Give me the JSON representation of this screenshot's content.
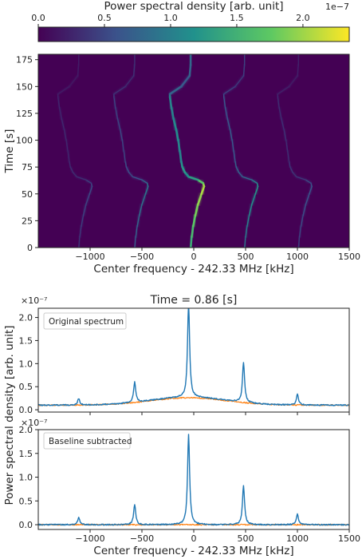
{
  "colorbar": {
    "label": "Power spectral density [arb. unit]",
    "exponent": "1e−7",
    "ticks": [
      "0.0",
      "0.5",
      "1.0",
      "1.5",
      "2.0"
    ],
    "tick_values": [
      0.0,
      0.5,
      1.0,
      1.5,
      2.0
    ],
    "range": [
      0,
      2.35
    ],
    "colormap": [
      "#440154",
      "#3b528b",
      "#21918c",
      "#5ec962",
      "#fde725"
    ]
  },
  "chart_data": [
    {
      "type": "heatmap",
      "title": "",
      "xlabel": "Center frequency - 242.33 MHz [kHz]",
      "ylabel": "Time [s]",
      "xlim": [
        -1500,
        1500
      ],
      "ylim": [
        0,
        180
      ],
      "xticks": [
        -1000,
        -500,
        0,
        500,
        1000,
        1500
      ],
      "xtick_labels": [
        "−1000",
        "−500",
        "0",
        "500",
        "1000",
        "1500"
      ],
      "yticks": [
        0,
        25,
        50,
        75,
        100,
        125,
        150,
        175
      ],
      "ytick_labels": [
        "0",
        "25",
        "50",
        "75",
        "100",
        "125",
        "150",
        "175"
      ],
      "background_color": "#440154",
      "main_track": {
        "time": [
          0,
          10,
          20,
          30,
          40,
          50,
          57,
          60,
          63,
          66,
          70,
          75,
          80,
          90,
          100,
          110,
          120,
          130,
          140,
          143,
          150,
          160,
          170,
          180
        ],
        "freq": [
          -30,
          -20,
          -5,
          15,
          40,
          75,
          100,
          90,
          40,
          -50,
          -85,
          -110,
          -120,
          -135,
          -150,
          -170,
          -195,
          -215,
          -230,
          -230,
          -120,
          -40,
          -30,
          -30
        ],
        "intensity": [
          1.4,
          1.5,
          1.65,
          1.8,
          1.9,
          2.0,
          2.1,
          1.9,
          1.5,
          1.1,
          1.2,
          1.3,
          1.1,
          1.0,
          1.1,
          1.15,
          1.05,
          1.0,
          1.1,
          0.9,
          0.6,
          0.7,
          0.8,
          0.8
        ]
      },
      "sideband_offsets_khz": [
        -1080,
        -540,
        520,
        1040
      ],
      "sideband_intensity": [
        0.25,
        0.45,
        0.6,
        0.3
      ]
    },
    {
      "type": "line",
      "title": "Time = 0.86 [s]",
      "legend": "Original spectrum",
      "xlim": [
        -1500,
        1500
      ],
      "ylim": [
        -0.05,
        2.2
      ],
      "yticks": [
        0.0,
        0.5,
        1.0,
        1.5,
        2.0
      ],
      "ytick_labels": [
        "0.0",
        "0.5",
        "1.0",
        "1.5",
        "2.0"
      ],
      "y_exponent": "×10⁻⁷",
      "series": [
        {
          "color": "#1f77b4",
          "baseline": 0.1,
          "hump": {
            "center": -50,
            "amplitude": 0.17,
            "width": 520
          },
          "peaks": [
            {
              "x": -1110,
              "y": 0.24
            },
            {
              "x": -570,
              "y": 0.54
            },
            {
              "x": -50,
              "y": 2.14
            },
            {
              "x": 480,
              "y": 0.97
            },
            {
              "x": 1000,
              "y": 0.34
            }
          ]
        },
        {
          "color": "#ff7f0e",
          "baseline": 0.1,
          "hump": {
            "center": -50,
            "amplitude": 0.16,
            "width": 520
          }
        }
      ]
    },
    {
      "type": "line",
      "legend": "Baseline subtracted",
      "xlabel": "Center frequency - 242.33 MHz [kHz]",
      "ylabel": "Power spectral density [arb. unit]",
      "xlim": [
        -1500,
        1500
      ],
      "ylim": [
        -0.1,
        2.0
      ],
      "xticks": [
        -1000,
        -500,
        0,
        500,
        1000,
        1500
      ],
      "xtick_labels": [
        "−1000",
        "−500",
        "0",
        "500",
        "1000",
        "1500"
      ],
      "yticks": [
        0.0,
        0.5,
        1.0,
        1.5,
        2.0
      ],
      "ytick_labels": [
        "0.0",
        "0.5",
        "1.0",
        "1.5",
        "2.0"
      ],
      "y_exponent": "×10⁻⁷",
      "series": [
        {
          "color": "#1f77b4",
          "baseline": 0.0,
          "peaks": [
            {
              "x": -1110,
              "y": 0.15
            },
            {
              "x": -570,
              "y": 0.42
            },
            {
              "x": -50,
              "y": 1.9
            },
            {
              "x": 480,
              "y": 0.82
            },
            {
              "x": 1000,
              "y": 0.23
            }
          ]
        },
        {
          "color": "#ff7f0e",
          "baseline": 0.0
        }
      ]
    }
  ]
}
